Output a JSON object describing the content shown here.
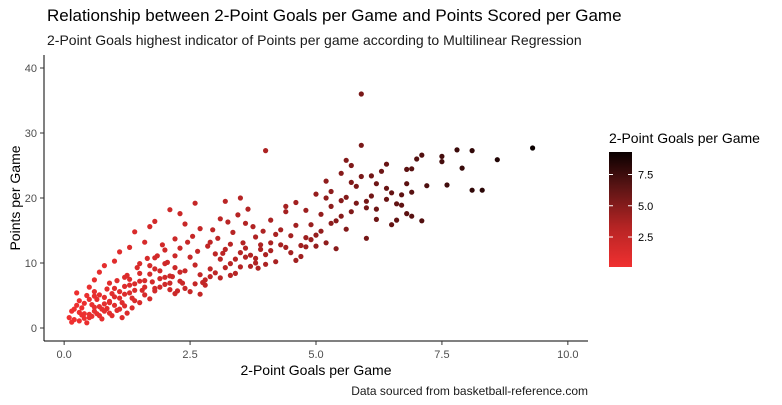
{
  "chart_data": {
    "type": "scatter",
    "title": "Relationship between 2-Point Goals per Game and Points Scored per Game",
    "subtitle": "2-Point Goals highest indicator of Points per game according to Multilinear Regression",
    "caption": "Data sourced from basketball-reference.com",
    "xlabel": "2-Point Goals per Game",
    "ylabel": "Points per Game",
    "xlim": [
      -0.4,
      10.4
    ],
    "ylim": [
      -2,
      42
    ],
    "xticks": [
      0,
      2.5,
      5,
      7.5,
      10
    ],
    "xtick_labels": [
      "0.0",
      "2.5",
      "5.0",
      "7.5",
      "10.0"
    ],
    "yticks": [
      0,
      10,
      20,
      30,
      40
    ],
    "ytick_labels": [
      "0",
      "10",
      "20",
      "30",
      "40"
    ],
    "grid": false,
    "legend": {
      "title": "2-Point Goals per Game",
      "placement": "right",
      "type": "colorbar",
      "range": [
        0.1,
        9.3
      ],
      "breaks": [
        2.5,
        5.0,
        7.5
      ],
      "break_labels": [
        "2.5",
        "5.0",
        "7.5"
      ],
      "color_low": "#f03030",
      "color_high": "#0a0000"
    },
    "points": [
      [
        9.3,
        27.7
      ],
      [
        8.6,
        25.9
      ],
      [
        8.3,
        21.2
      ],
      [
        8.1,
        21.2
      ],
      [
        8.1,
        27.3
      ],
      [
        7.8,
        27.4
      ],
      [
        7.5,
        25.6
      ],
      [
        7.5,
        26.4
      ],
      [
        7.1,
        26.6
      ],
      [
        7.1,
        16.5
      ],
      [
        6.9,
        17.2
      ],
      [
        6.8,
        17.6
      ],
      [
        6.6,
        16.6
      ],
      [
        6.9,
        24.5
      ],
      [
        6.8,
        22.2
      ],
      [
        6.7,
        20.5
      ],
      [
        6.5,
        20.8
      ],
      [
        6.4,
        21.5
      ],
      [
        6.2,
        18.3
      ],
      [
        6.3,
        24.1
      ],
      [
        6.2,
        22.2
      ],
      [
        6.1,
        20.3
      ],
      [
        6.0,
        19.5
      ],
      [
        5.9,
        36.0
      ],
      [
        5.9,
        28.1
      ],
      [
        6.0,
        13.8
      ],
      [
        5.8,
        19.2
      ],
      [
        5.7,
        22.4
      ],
      [
        5.7,
        25.0
      ],
      [
        5.6,
        20.1
      ],
      [
        5.5,
        17.2
      ],
      [
        5.4,
        16.5
      ],
      [
        5.3,
        18.7
      ],
      [
        5.2,
        20.0
      ],
      [
        5.1,
        17.5
      ],
      [
        5.0,
        14.3
      ],
      [
        4.9,
        13.6
      ],
      [
        5.6,
        15.2
      ],
      [
        5.4,
        12.2
      ],
      [
        5.2,
        13.1
      ],
      [
        5.0,
        12.6
      ],
      [
        4.8,
        13.9
      ],
      [
        4.7,
        12.7
      ],
      [
        4.6,
        15.8
      ],
      [
        4.5,
        14.2
      ],
      [
        4.4,
        18.7
      ],
      [
        4.3,
        15.1
      ],
      [
        4.2,
        14.4
      ],
      [
        4.1,
        13.1
      ],
      [
        4.0,
        27.3
      ],
      [
        4.0,
        11.3
      ],
      [
        3.9,
        12.8
      ],
      [
        3.8,
        10.0
      ],
      [
        3.7,
        9.5
      ],
      [
        3.6,
        10.9
      ],
      [
        3.5,
        11.6
      ],
      [
        4.2,
        10.2
      ],
      [
        4.4,
        12.4
      ],
      [
        4.7,
        11.0
      ],
      [
        3.4,
        8.4
      ],
      [
        3.3,
        9.9
      ],
      [
        3.2,
        12.1
      ],
      [
        3.1,
        10.6
      ],
      [
        3.0,
        11.4
      ],
      [
        2.9,
        9.1
      ],
      [
        2.8,
        7.4
      ],
      [
        2.7,
        8.2
      ],
      [
        2.6,
        9.7
      ],
      [
        2.5,
        10.9
      ],
      [
        2.4,
        8.8
      ],
      [
        2.3,
        12.3
      ],
      [
        2.2,
        9.3
      ],
      [
        2.1,
        8.0
      ],
      [
        2.0,
        6.7
      ],
      [
        1.9,
        7.6
      ],
      [
        1.8,
        9.1
      ],
      [
        1.7,
        8.3
      ],
      [
        1.6,
        6.3
      ],
      [
        1.5,
        7.2
      ],
      [
        1.4,
        5.8
      ],
      [
        1.3,
        6.6
      ],
      [
        1.2,
        5.2
      ],
      [
        1.1,
        4.6
      ],
      [
        1.0,
        6.1
      ],
      [
        0.9,
        3.9
      ],
      [
        0.8,
        4.7
      ],
      [
        0.7,
        3.3
      ],
      [
        0.6,
        2.6
      ],
      [
        0.5,
        2.1
      ],
      [
        0.4,
        1.5
      ],
      [
        0.3,
        2.4
      ],
      [
        0.2,
        1.3
      ],
      [
        0.1,
        1.6
      ],
      [
        0.15,
        0.9
      ],
      [
        0.35,
        3.1
      ],
      [
        0.45,
        5.0
      ],
      [
        0.55,
        3.6
      ],
      [
        0.65,
        4.4
      ],
      [
        0.75,
        2.9
      ],
      [
        0.85,
        6.0
      ],
      [
        0.95,
        5.3
      ],
      [
        1.05,
        7.3
      ],
      [
        1.15,
        3.9
      ],
      [
        1.25,
        8.1
      ],
      [
        1.35,
        4.6
      ],
      [
        1.45,
        9.3
      ],
      [
        1.55,
        5.8
      ],
      [
        1.65,
        10.7
      ],
      [
        1.75,
        7.1
      ],
      [
        1.85,
        11.1
      ],
      [
        1.95,
        12.8
      ],
      [
        2.05,
        10.1
      ],
      [
        2.15,
        7.9
      ],
      [
        2.25,
        5.7
      ],
      [
        2.35,
        6.9
      ],
      [
        2.45,
        13.2
      ],
      [
        2.55,
        14.1
      ],
      [
        2.65,
        11.8
      ],
      [
        2.75,
        7.0
      ],
      [
        2.85,
        12.6
      ],
      [
        2.95,
        15.1
      ],
      [
        3.05,
        13.8
      ],
      [
        3.15,
        11.5
      ],
      [
        3.25,
        16.3
      ],
      [
        3.35,
        14.7
      ],
      [
        3.45,
        17.4
      ],
      [
        3.55,
        13.1
      ],
      [
        3.65,
        18.3
      ],
      [
        3.75,
        15.6
      ],
      [
        3.85,
        9.2
      ],
      [
        3.95,
        14.9
      ],
      [
        2.6,
        19.2
      ],
      [
        3.2,
        19.5
      ],
      [
        3.5,
        20.0
      ],
      [
        2.3,
        17.6
      ],
      [
        1.8,
        16.4
      ],
      [
        1.6,
        13.2
      ],
      [
        1.3,
        12.4
      ],
      [
        1.0,
        10.3
      ],
      [
        0.8,
        9.6
      ],
      [
        0.6,
        7.4
      ],
      [
        0.5,
        6.3
      ],
      [
        0.3,
        4.2
      ],
      [
        0.25,
        5.4
      ],
      [
        0.7,
        8.6
      ],
      [
        1.1,
        11.7
      ],
      [
        1.4,
        14.8
      ],
      [
        1.7,
        15.6
      ],
      [
        2.1,
        18.2
      ],
      [
        2.4,
        16.0
      ],
      [
        0.4,
        3.8
      ],
      [
        0.5,
        4.4
      ],
      [
        0.6,
        3.2
      ],
      [
        0.7,
        5.1
      ],
      [
        0.8,
        2.6
      ],
      [
        0.9,
        4.1
      ],
      [
        1.0,
        3.5
      ],
      [
        1.1,
        5.6
      ],
      [
        1.2,
        6.4
      ],
      [
        1.3,
        7.5
      ],
      [
        1.4,
        6.8
      ],
      [
        1.5,
        8.4
      ],
      [
        1.6,
        7.3
      ],
      [
        1.7,
        9.6
      ],
      [
        1.8,
        6.1
      ],
      [
        1.9,
        8.8
      ],
      [
        2.0,
        9.9
      ],
      [
        2.1,
        5.9
      ],
      [
        2.2,
        11.1
      ],
      [
        2.3,
        8.6
      ],
      [
        0.2,
        2.9
      ],
      [
        0.3,
        1.1
      ],
      [
        0.4,
        2.2
      ],
      [
        0.5,
        1.6
      ],
      [
        0.6,
        4.9
      ],
      [
        0.7,
        1.9
      ],
      [
        0.8,
        3.7
      ],
      [
        0.9,
        2.3
      ],
      [
        1.0,
        4.8
      ],
      [
        1.1,
        2.9
      ],
      [
        1.2,
        3.4
      ],
      [
        1.3,
        5.4
      ],
      [
        1.4,
        4.2
      ],
      [
        1.5,
        3.9
      ],
      [
        1.6,
        5.1
      ],
      [
        1.7,
        4.5
      ],
      [
        1.8,
        5.7
      ],
      [
        1.9,
        6.3
      ],
      [
        2.0,
        7.8
      ],
      [
        2.1,
        6.9
      ],
      [
        2.2,
        5.3
      ],
      [
        2.3,
        7.2
      ],
      [
        2.4,
        6.1
      ],
      [
        2.5,
        5.6
      ],
      [
        2.6,
        6.8
      ],
      [
        2.7,
        5.2
      ],
      [
        2.8,
        6.6
      ],
      [
        2.9,
        7.9
      ],
      [
        3.0,
        8.5
      ],
      [
        3.1,
        7.7
      ],
      [
        3.2,
        9.3
      ],
      [
        3.3,
        8.1
      ],
      [
        3.4,
        10.6
      ],
      [
        3.5,
        9.4
      ],
      [
        3.6,
        12.3
      ],
      [
        3.7,
        11.2
      ],
      [
        3.8,
        10.7
      ],
      [
        3.9,
        12.1
      ],
      [
        4.0,
        9.8
      ],
      [
        4.1,
        11.9
      ],
      [
        4.3,
        12.8
      ],
      [
        4.5,
        11.6
      ],
      [
        4.6,
        10.4
      ],
      [
        4.8,
        12.5
      ],
      [
        4.9,
        15.9
      ],
      [
        5.1,
        14.9
      ],
      [
        5.3,
        16.1
      ],
      [
        5.5,
        19.6
      ],
      [
        5.8,
        21.8
      ],
      [
        6.1,
        23.4
      ],
      [
        6.4,
        25.2
      ],
      [
        6.6,
        19.1
      ],
      [
        6.8,
        24.4
      ],
      [
        7.0,
        26.0
      ],
      [
        7.2,
        21.9
      ],
      [
        7.6,
        22.0
      ],
      [
        7.9,
        24.6
      ],
      [
        5.6,
        25.8
      ],
      [
        5.9,
        23.3
      ],
      [
        5.2,
        22.6
      ],
      [
        0.45,
        0.8
      ],
      [
        0.55,
        1.8
      ],
      [
        0.65,
        2.2
      ],
      [
        0.75,
        1.4
      ],
      [
        0.85,
        3.0
      ],
      [
        0.95,
        1.9
      ],
      [
        1.05,
        2.7
      ],
      [
        1.15,
        1.6
      ],
      [
        1.25,
        2.3
      ],
      [
        1.35,
        3.1
      ],
      [
        0.35,
        2.0
      ],
      [
        0.25,
        3.5
      ],
      [
        0.15,
        2.6
      ],
      [
        0.6,
        5.6
      ],
      [
        0.9,
        6.9
      ],
      [
        1.2,
        7.8
      ],
      [
        1.5,
        9.9
      ],
      [
        1.8,
        10.8
      ],
      [
        2.0,
        12.0
      ],
      [
        2.2,
        13.7
      ],
      [
        2.7,
        15.3
      ],
      [
        2.9,
        13.2
      ],
      [
        3.1,
        16.8
      ],
      [
        3.3,
        12.9
      ],
      [
        3.6,
        16.1
      ],
      [
        3.8,
        14.0
      ],
      [
        4.1,
        16.6
      ],
      [
        4.4,
        17.9
      ],
      [
        4.6,
        19.3
      ],
      [
        4.8,
        18.1
      ],
      [
        5.0,
        20.6
      ],
      [
        5.3,
        21.0
      ],
      [
        5.5,
        23.8
      ],
      [
        5.7,
        17.9
      ],
      [
        6.0,
        18.5
      ],
      [
        6.2,
        16.7
      ],
      [
        6.4,
        19.8
      ],
      [
        6.5,
        15.9
      ],
      [
        6.7,
        18.9
      ],
      [
        6.9,
        20.9
      ]
    ]
  }
}
